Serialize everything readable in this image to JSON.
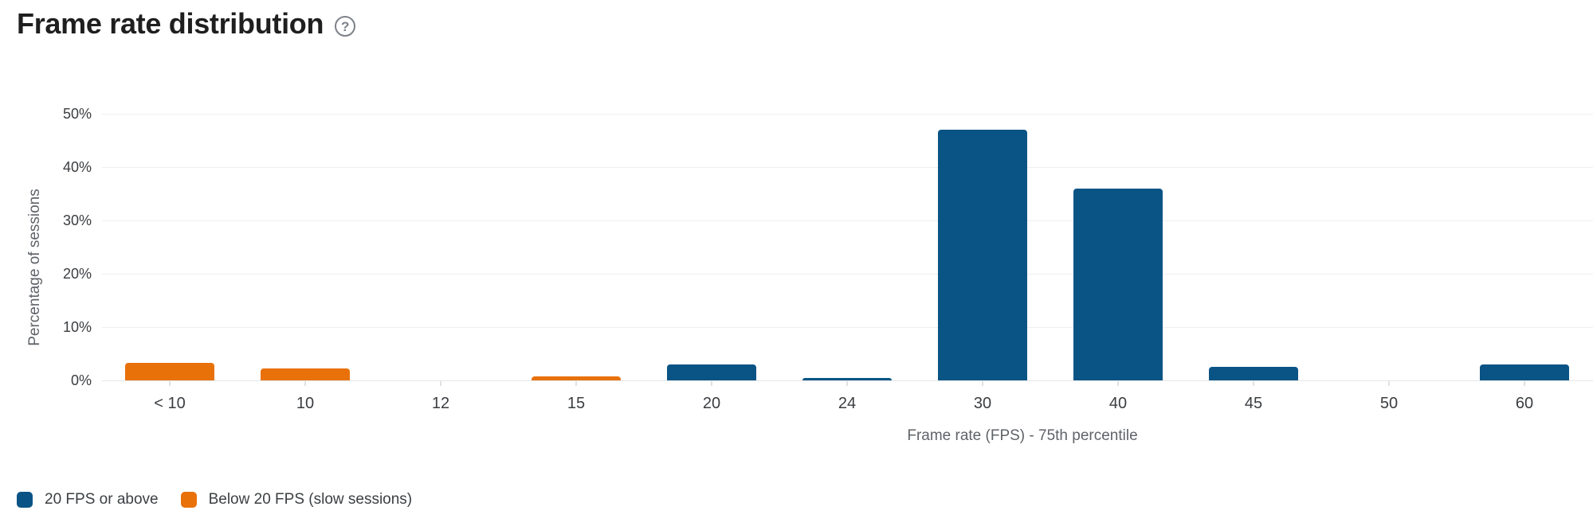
{
  "header": {
    "title": "Frame rate distribution",
    "help_icon_glyph": "?"
  },
  "chart_data": {
    "type": "bar",
    "title": "Frame rate distribution",
    "xlabel": "Frame rate (FPS) - 75th percentile",
    "ylabel": "Percentage of sessions",
    "categories": [
      "< 10",
      "10",
      "12",
      "15",
      "20",
      "24",
      "30",
      "40",
      "45",
      "50",
      "60"
    ],
    "series": [
      {
        "name": "20 FPS or above",
        "color": "#0a5485",
        "values": [
          0,
          0,
          0,
          0,
          3,
          0.5,
          47,
          36,
          2.5,
          0,
          3
        ]
      },
      {
        "name": "Below 20 FPS (slow sessions)",
        "color": "#e8710a",
        "values": [
          3.3,
          2.3,
          0,
          0.7,
          0,
          0,
          0,
          0,
          0,
          0,
          0
        ]
      }
    ],
    "y_ticks": [
      "0%",
      "10%",
      "20%",
      "30%",
      "40%",
      "50%"
    ],
    "ylim": [
      0,
      50
    ],
    "grid": true,
    "legend_position": "bottom-left"
  }
}
